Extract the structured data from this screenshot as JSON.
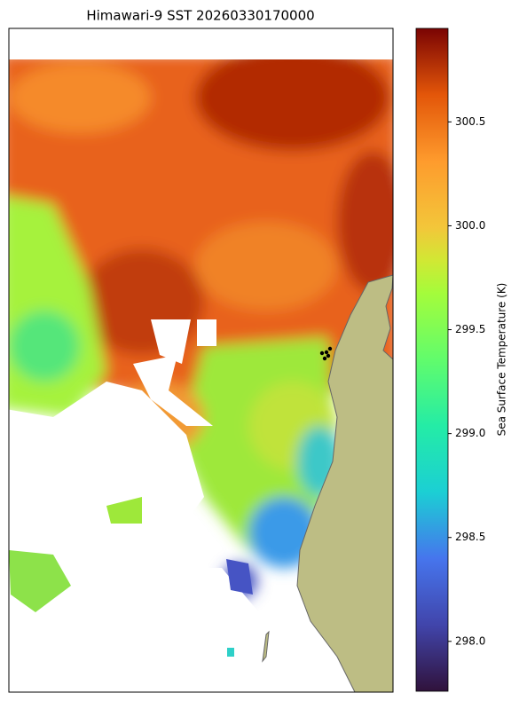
{
  "chart_data": {
    "type": "map",
    "title": "Himawari-9 SST 20260330170000",
    "ylabel": "Sea Surface Temperature (K)",
    "ylim": [
      297.76,
      300.95
    ],
    "yticks": [
      {
        "value": 298,
        "label": "298.0"
      },
      298.5,
      {
        "value": 299,
        "label": "299.0"
      },
      299.5,
      {
        "value": 300,
        "label": "300.0"
      },
      300.5
    ]
  }
}
